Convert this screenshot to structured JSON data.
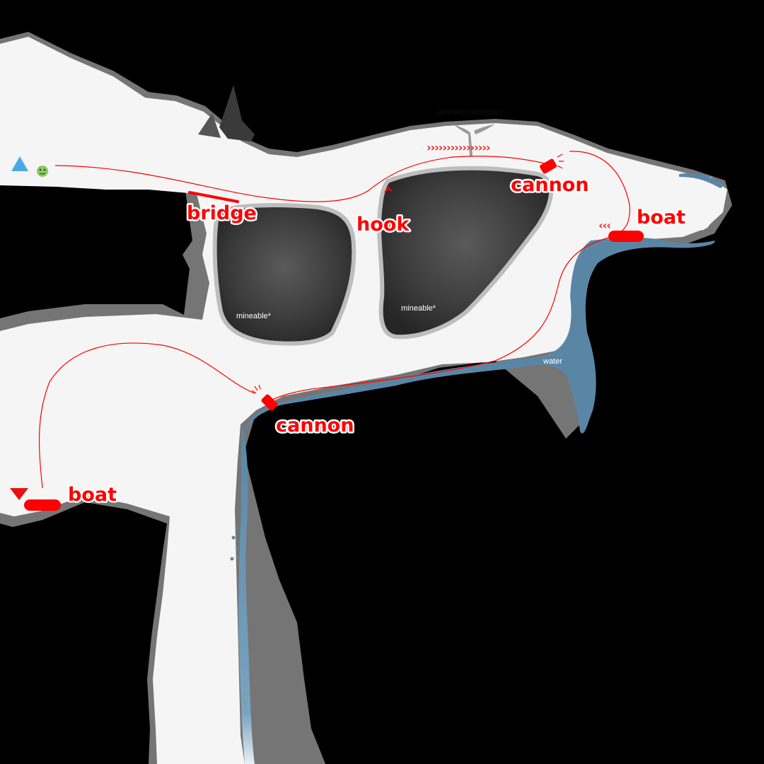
{
  "map": {
    "labels": {
      "bridge": "bridge",
      "hook": "hook",
      "cannon_top": "cannon",
      "cannon_bottom": "cannon",
      "boat_right": "boat",
      "boat_left": "boat",
      "petroleo": "petroleo (speedup)",
      "mineable_left": "mineable*",
      "mineable_right": "mineable*",
      "water": "water",
      "speed_arrows": "››››››››››››››››",
      "boat_arrows": "‹‹‹"
    },
    "icons": {
      "start": "start-triangle-icon",
      "end": "end-triangle-icon",
      "player": "player-blob-icon"
    },
    "colors": {
      "background": "#000000",
      "cave": "#f5f5f5",
      "rock": "#3a3a3a",
      "water": "#5a86a6",
      "route": "#ff0000",
      "start": "#4aa8e8",
      "end": "#e81010",
      "player": "#8cc860"
    }
  }
}
